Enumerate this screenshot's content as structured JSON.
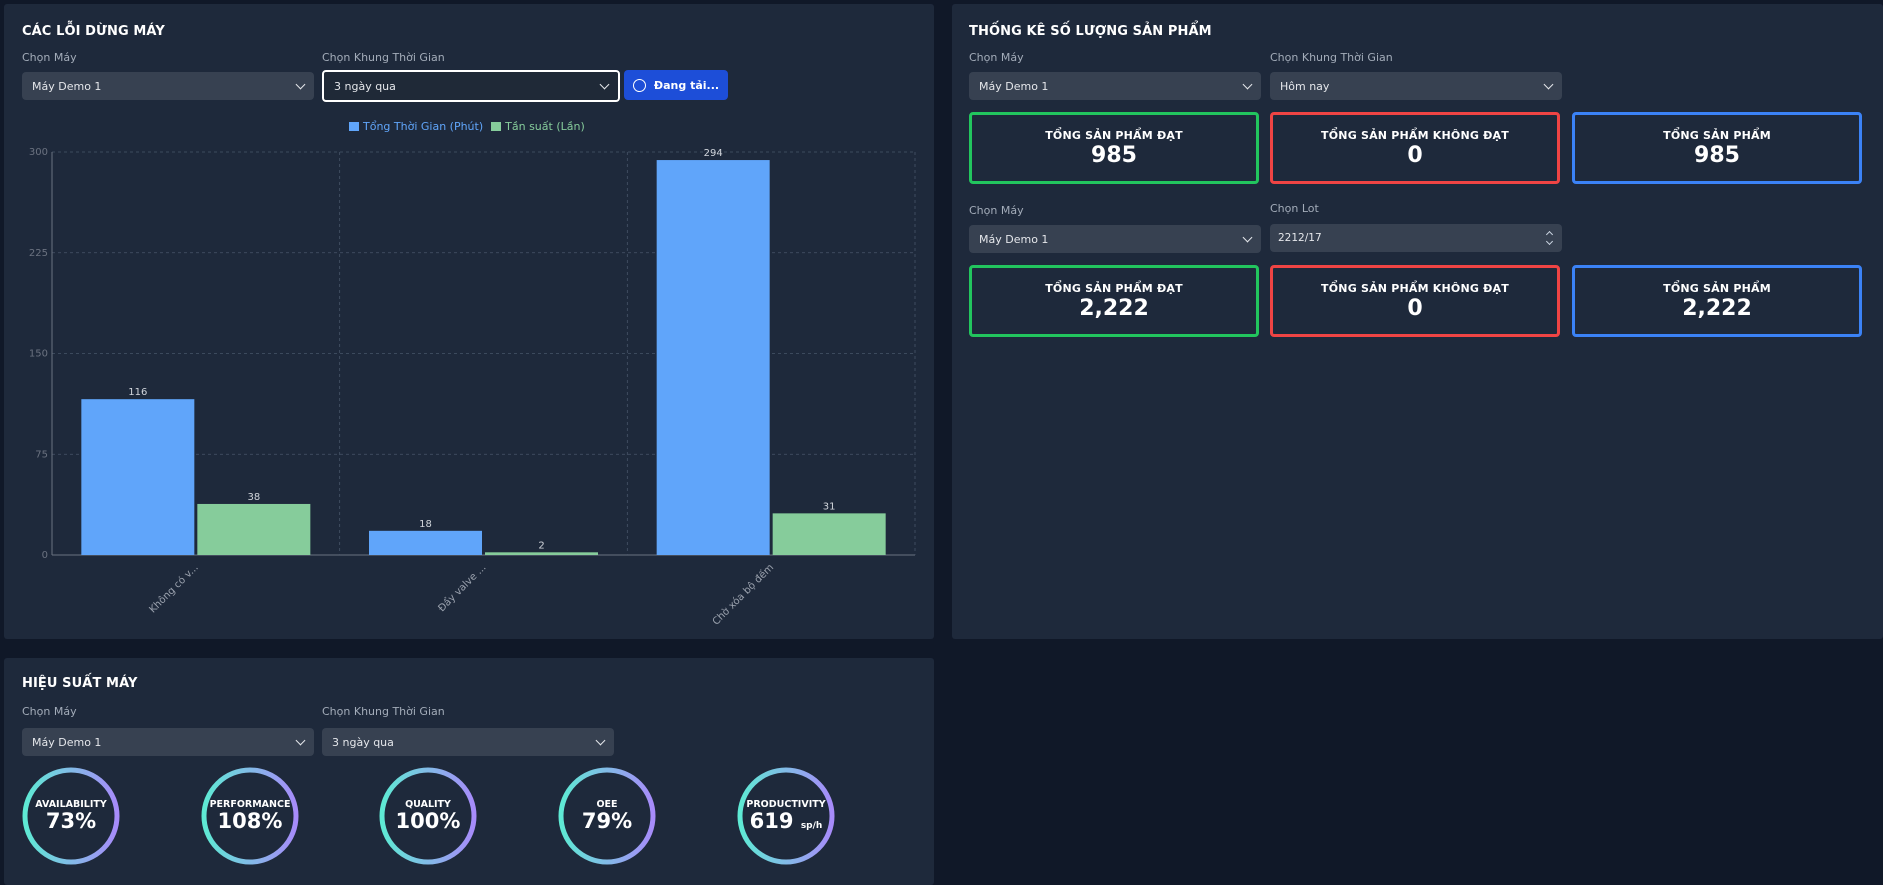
{
  "downtime": {
    "title": "CÁC LỖI DỪNG MÁY",
    "machine_label": "Chọn Máy",
    "machine_value": "Máy Demo 1",
    "period_label": "Chọn Khung Thời Gian",
    "period_value": "3 ngày qua",
    "load_button": "Đang tải...",
    "colors": {
      "duration": "#60a5fa",
      "frequency": "#86cc9b"
    }
  },
  "chart_data": {
    "type": "bar",
    "categories": [
      "Không có v...",
      "Đẩy valve ...",
      "Chờ xóa bộ đếm"
    ],
    "series": [
      {
        "name": "Tổng Thời Gian (Phút)",
        "values": [
          116,
          18,
          294
        ]
      },
      {
        "name": "Tần suất (Lần)",
        "values": [
          38,
          2,
          31
        ]
      }
    ],
    "ylim": [
      0,
      300
    ],
    "yticks": [
      "0",
      "75",
      "150",
      "225",
      "300"
    ],
    "grid": true,
    "legend": "top-center"
  },
  "products": {
    "title": "THỐNG KÊ SỐ LƯỢNG SẢN PHẨM",
    "machine_label": "Chọn Máy",
    "machine_value": "Máy Demo 1",
    "period_label": "Chọn Khung Thời Gian",
    "period_value": "Hôm nay",
    "cards_top": [
      {
        "label": "TỔNG SẢN PHẨM ĐẠT",
        "value": "985"
      },
      {
        "label": "TỔNG SẢN PHẨM KHÔNG ĐẠT",
        "value": "0"
      },
      {
        "label": "TỔNG SẢN PHẨM",
        "value": "985"
      }
    ],
    "machine_label_2": "Chọn Máy",
    "machine_value_2": "Máy Demo 1",
    "lot_label": "Chọn Lot",
    "lot_value": "2212/17",
    "cards_bottom": [
      {
        "label": "TỔNG SẢN PHẨM ĐẠT",
        "value": "2,222"
      },
      {
        "label": "TỔNG SẢN PHẨM KHÔNG ĐẠT",
        "value": "0"
      },
      {
        "label": "TỔNG SẢN PHẨM",
        "value": "2,222"
      }
    ]
  },
  "performance": {
    "title": "HIỆU SUẤT MÁY",
    "machine_label": "Chọn Máy",
    "machine_value": "Máy Demo 1",
    "period_label": "Chọn Khung Thời Gian",
    "period_value": "3 ngày qua",
    "gauges": [
      {
        "label": "AVAILABILITY",
        "value": "73%",
        "unit": ""
      },
      {
        "label": "PERFORMANCE",
        "value": "108%",
        "unit": ""
      },
      {
        "label": "QUALITY",
        "value": "100%",
        "unit": ""
      },
      {
        "label": "OEE",
        "value": "79%",
        "unit": ""
      },
      {
        "label": "PRODUCTIVITY",
        "value": "619",
        "unit": "sp/h"
      }
    ],
    "gauge_colors": [
      "#5eead4",
      "#a78bfa"
    ]
  }
}
